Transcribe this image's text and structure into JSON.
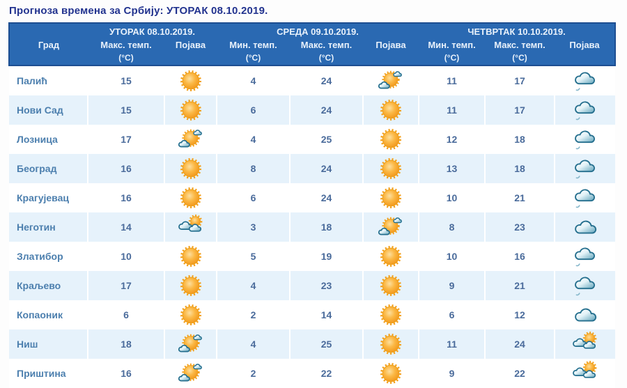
{
  "page": {
    "title": "Прогноза времена за Србију: УТОРАК  08.10.2019."
  },
  "table": {
    "day_groups": [
      {
        "label": "УТОРАК  08.10.2019."
      },
      {
        "label": "СРЕДА  09.10.2019."
      },
      {
        "label": "ЧЕТВРТАК  10.10.2019."
      }
    ],
    "columns": {
      "city": "Град",
      "max_temp": "Макс. темп.",
      "min_temp": "Мин. темп.",
      "unit": "(°C)",
      "condition": "Појава"
    },
    "rows": [
      {
        "city": "Палић",
        "d1_max": 15,
        "d1_icon": "sunny",
        "d2_min": 4,
        "d2_max": 24,
        "d2_icon": "partly-sunny",
        "d3_min": 11,
        "d3_max": 17,
        "d3_icon": "cloudy-drizzle"
      },
      {
        "city": "Нови Сад",
        "d1_max": 15,
        "d1_icon": "sunny",
        "d2_min": 6,
        "d2_max": 24,
        "d2_icon": "sunny",
        "d3_min": 11,
        "d3_max": 17,
        "d3_icon": "cloudy-drizzle"
      },
      {
        "city": "Лозница",
        "d1_max": 17,
        "d1_icon": "partly-sunny",
        "d2_min": 4,
        "d2_max": 25,
        "d2_icon": "sunny",
        "d3_min": 12,
        "d3_max": 18,
        "d3_icon": "cloudy-drizzle"
      },
      {
        "city": "Београд",
        "d1_max": 16,
        "d1_icon": "sunny",
        "d2_min": 8,
        "d2_max": 24,
        "d2_icon": "sunny",
        "d3_min": 13,
        "d3_max": 18,
        "d3_icon": "cloudy-drizzle"
      },
      {
        "city": "Крагујевац",
        "d1_max": 16,
        "d1_icon": "sunny",
        "d2_min": 6,
        "d2_max": 24,
        "d2_icon": "sunny",
        "d3_min": 10,
        "d3_max": 21,
        "d3_icon": "cloudy-drizzle"
      },
      {
        "city": "Неготин",
        "d1_max": 14,
        "d1_icon": "mostly-cloudy",
        "d2_min": 3,
        "d2_max": 18,
        "d2_icon": "partly-sunny",
        "d3_min": 8,
        "d3_max": 23,
        "d3_icon": "cloudy"
      },
      {
        "city": "Златибор",
        "d1_max": 10,
        "d1_icon": "sunny",
        "d2_min": 5,
        "d2_max": 19,
        "d2_icon": "sunny",
        "d3_min": 10,
        "d3_max": 16,
        "d3_icon": "cloudy-drizzle"
      },
      {
        "city": "Краљево",
        "d1_max": 17,
        "d1_icon": "sunny",
        "d2_min": 4,
        "d2_max": 23,
        "d2_icon": "sunny",
        "d3_min": 9,
        "d3_max": 21,
        "d3_icon": "cloudy-drizzle"
      },
      {
        "city": "Копаоник",
        "d1_max": 6,
        "d1_icon": "sunny",
        "d2_min": 2,
        "d2_max": 14,
        "d2_icon": "sunny",
        "d3_min": 6,
        "d3_max": 12,
        "d3_icon": "cloudy"
      },
      {
        "city": "Ниш",
        "d1_max": 18,
        "d1_icon": "partly-sunny",
        "d2_min": 4,
        "d2_max": 25,
        "d2_icon": "sunny",
        "d3_min": 11,
        "d3_max": 24,
        "d3_icon": "mostly-cloudy"
      },
      {
        "city": "Приштина",
        "d1_max": 16,
        "d1_icon": "partly-sunny",
        "d2_min": 2,
        "d2_max": 22,
        "d2_icon": "sunny",
        "d3_min": 9,
        "d3_max": 22,
        "d3_icon": "mostly-cloudy"
      }
    ]
  },
  "colors": {
    "header_bg": "#2a69b2",
    "header_border": "#1d4e91",
    "header_text": "#e8f1fb",
    "title_text": "#22338f",
    "row_stripe": "#e6f2fb",
    "temp_text": "#4a6b9b",
    "city_text": "#4c7fae",
    "bottom_border": "#4a7db5",
    "sun": "#f7a82b",
    "cloud_outline": "#256f8e"
  }
}
